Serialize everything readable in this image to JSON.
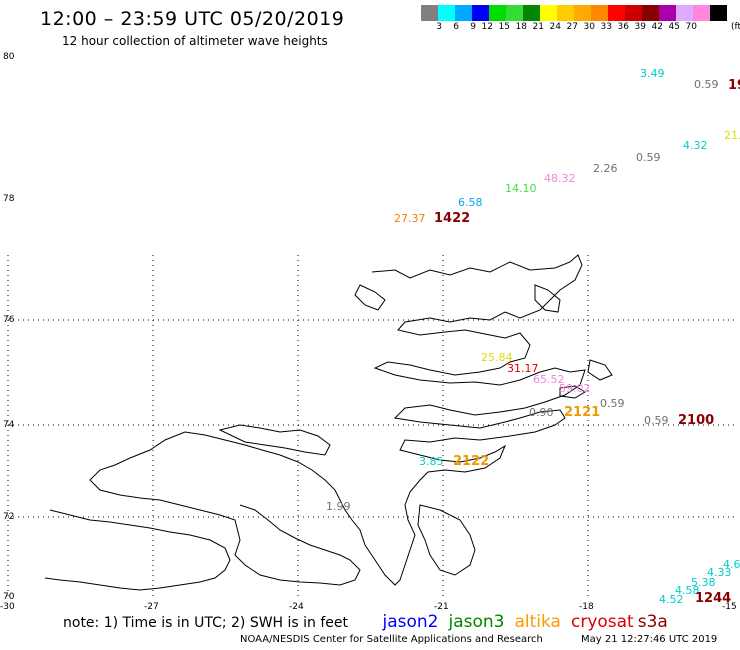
{
  "header": {
    "title": "12:00 – 23:59 UTC 05/20/2019",
    "subtitle": "12 hour collection of altimeter wave heights"
  },
  "legend": {
    "colors": [
      "#808080",
      "#00ffff",
      "#00aaff",
      "#0000ff",
      "#00dd00",
      "#33dd33",
      "#008800",
      "#ffff00",
      "#ffcc00",
      "#ffaa00",
      "#ff8800",
      "#ff0000",
      "#cc0000",
      "#880000",
      "#aa00aa",
      "#ddaaff",
      "#ff88dd",
      "#000000"
    ],
    "labels": [
      "3",
      "6",
      "9",
      "12",
      "15",
      "18",
      "21",
      "24",
      "27",
      "30",
      "33",
      "36",
      "39",
      "42",
      "45",
      "70"
    ],
    "unit": "(ft)"
  },
  "axes": {
    "lat_labels": [
      "80",
      "78",
      "76",
      "74",
      "72",
      "70"
    ],
    "lon_labels": [
      "-30",
      "-27",
      "-24",
      "-21",
      "-18",
      "-15"
    ]
  },
  "measurements": [
    {
      "text": "3.49",
      "color": "#00cccc"
    },
    {
      "text": "0.59",
      "color": "#707070"
    },
    {
      "text": "19",
      "color": "#880000"
    },
    {
      "text": "21.",
      "color": "#dddd00"
    },
    {
      "text": "4.32",
      "color": "#00cccc"
    },
    {
      "text": "0.59",
      "color": "#707070"
    },
    {
      "text": "2.26",
      "color": "#707070"
    },
    {
      "text": "48.32",
      "color": "#ee88dd"
    },
    {
      "text": "14.10",
      "color": "#44dd44"
    },
    {
      "text": "6.58",
      "color": "#00aaee"
    },
    {
      "text": "27.37",
      "color": "#ee8800"
    },
    {
      "text": "1422",
      "color": "#880000"
    },
    {
      "text": "25.84",
      "color": "#dddd00"
    },
    {
      "text": "31.17",
      "color": "#dd0000"
    },
    {
      "text": "65.52",
      "color": "#ee88dd"
    },
    {
      "text": "59.02",
      "color": "#ee88dd"
    },
    {
      "text": "0.59",
      "color": "#707070"
    },
    {
      "text": "0.90",
      "color": "#707070"
    },
    {
      "text": "2121",
      "color": "#ee9900"
    },
    {
      "text": "0.59",
      "color": "#707070"
    },
    {
      "text": "2100",
      "color": "#880000"
    },
    {
      "text": "3.85",
      "color": "#00cccc"
    },
    {
      "text": "2122",
      "color": "#ee9900"
    },
    {
      "text": "1.99",
      "color": "#707070"
    },
    {
      "text": "4.6",
      "color": "#00cccc"
    },
    {
      "text": "4.33",
      "color": "#00cccc"
    },
    {
      "text": "5.38",
      "color": "#00cccc"
    },
    {
      "text": "4.58",
      "color": "#00cccc"
    },
    {
      "text": "4.52",
      "color": "#00cccc"
    },
    {
      "text": "1244",
      "color": "#880000"
    }
  ],
  "footer": {
    "note": "note: 1) Time is in UTC; 2) SWH is in feet",
    "satellites": [
      {
        "name": "jason2",
        "color": "#0000ff"
      },
      {
        "name": "jason3",
        "color": "#008800"
      },
      {
        "name": "altika",
        "color": "#ff9900"
      },
      {
        "name": "cryosat",
        "color": "#dd0000"
      },
      {
        "name": "s3a",
        "color": "#880000"
      }
    ],
    "credit": "NOAA/NESDIS Center for Satellite Applications and Research",
    "timestamp": "May 21 12:27:46 UTC 2019"
  }
}
